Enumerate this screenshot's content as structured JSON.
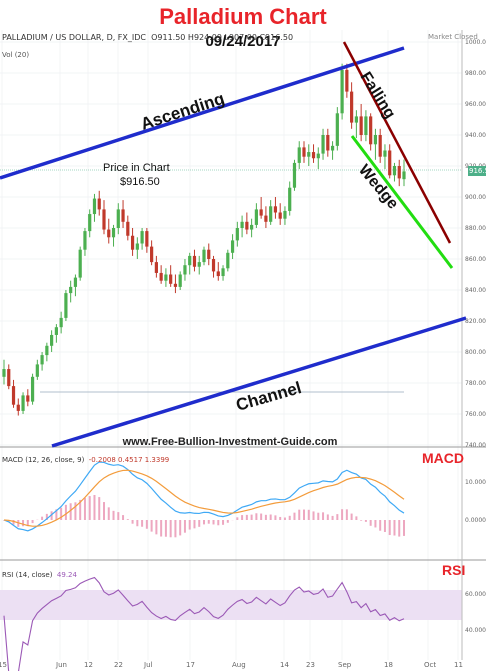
{
  "chart_data": {
    "type": "candlestick",
    "title": "Palladium Chart",
    "date": "09/24/2017",
    "symbol_header": "PALLADIUM / US DOLLAR, D, FX_IDC",
    "ohlc_readout": "O911.50  H924.09  L907.00  C916.50",
    "volume_label": "Vol (20)",
    "market_status": "Market Closed",
    "price_label_line1": "Price in Chart",
    "price_label_line2": "$916.50",
    "last_price_tag": "916.50",
    "website": "www.Free-Bullion-Investment-Guide.com",
    "annotations": [
      "Ascending",
      "Falling",
      "Wedge",
      "Channel"
    ],
    "price_axis": {
      "ticks": [
        "1000.00",
        "980.00",
        "960.00",
        "940.00",
        "920.00",
        "900.00",
        "880.00",
        "860.00",
        "840.00",
        "820.00",
        "800.00",
        "780.00",
        "760.00",
        "740.00"
      ],
      "range": [
        740,
        1000
      ]
    },
    "x_ticks": [
      "15",
      "Jun",
      "12",
      "22",
      "Jul",
      "17",
      "Aug",
      "14",
      "23",
      "Sep",
      "18",
      "Oct",
      "11"
    ],
    "candles": [
      [
        784,
        795,
        779,
        789
      ],
      [
        789,
        792,
        776,
        778
      ],
      [
        778,
        782,
        764,
        766
      ],
      [
        766,
        770,
        759,
        762
      ],
      [
        762,
        774,
        760,
        772
      ],
      [
        772,
        776,
        765,
        768
      ],
      [
        768,
        786,
        766,
        784
      ],
      [
        784,
        795,
        782,
        792
      ],
      [
        792,
        800,
        788,
        798
      ],
      [
        798,
        806,
        794,
        804
      ],
      [
        804,
        814,
        800,
        811
      ],
      [
        811,
        818,
        806,
        816
      ],
      [
        816,
        826,
        812,
        822
      ],
      [
        822,
        840,
        820,
        838
      ],
      [
        838,
        846,
        832,
        842
      ],
      [
        842,
        850,
        836,
        848
      ],
      [
        848,
        868,
        846,
        866
      ],
      [
        866,
        880,
        862,
        878
      ],
      [
        878,
        892,
        874,
        889
      ],
      [
        889,
        902,
        884,
        899
      ],
      [
        899,
        904,
        888,
        892
      ],
      [
        892,
        898,
        876,
        879
      ],
      [
        879,
        886,
        870,
        874
      ],
      [
        874,
        882,
        868,
        880
      ],
      [
        880,
        896,
        876,
        892
      ],
      [
        892,
        898,
        880,
        884
      ],
      [
        884,
        888,
        872,
        875
      ],
      [
        875,
        880,
        862,
        866
      ],
      [
        866,
        874,
        860,
        870
      ],
      [
        870,
        880,
        866,
        878
      ],
      [
        878,
        880,
        864,
        868
      ],
      [
        868,
        872,
        856,
        858
      ],
      [
        858,
        862,
        848,
        851
      ],
      [
        851,
        856,
        844,
        846
      ],
      [
        846,
        854,
        842,
        850
      ],
      [
        850,
        856,
        842,
        844
      ],
      [
        844,
        850,
        838,
        842
      ],
      [
        842,
        852,
        840,
        850
      ],
      [
        850,
        860,
        846,
        856
      ],
      [
        856,
        864,
        850,
        862
      ],
      [
        862,
        866,
        852,
        855
      ],
      [
        855,
        862,
        850,
        858
      ],
      [
        858,
        868,
        856,
        866
      ],
      [
        866,
        870,
        856,
        860
      ],
      [
        860,
        862,
        848,
        852
      ],
      [
        852,
        858,
        846,
        849
      ],
      [
        849,
        856,
        846,
        854
      ],
      [
        854,
        866,
        852,
        864
      ],
      [
        864,
        876,
        860,
        872
      ],
      [
        872,
        884,
        868,
        880
      ],
      [
        880,
        888,
        874,
        884
      ],
      [
        884,
        890,
        876,
        879
      ],
      [
        879,
        886,
        874,
        882
      ],
      [
        882,
        896,
        880,
        892
      ],
      [
        892,
        900,
        886,
        888
      ],
      [
        888,
        894,
        880,
        884
      ],
      [
        884,
        898,
        882,
        894
      ],
      [
        894,
        900,
        886,
        890
      ],
      [
        890,
        896,
        882,
        886
      ],
      [
        886,
        894,
        882,
        891
      ],
      [
        891,
        910,
        888,
        906
      ],
      [
        906,
        924,
        904,
        922
      ],
      [
        922,
        936,
        918,
        932
      ],
      [
        932,
        936,
        922,
        926
      ],
      [
        926,
        934,
        920,
        929
      ],
      [
        929,
        934,
        922,
        925
      ],
      [
        925,
        932,
        918,
        928
      ],
      [
        928,
        944,
        924,
        940
      ],
      [
        940,
        944,
        926,
        930
      ],
      [
        930,
        936,
        924,
        933
      ],
      [
        933,
        958,
        930,
        954
      ],
      [
        954,
        986,
        950,
        982
      ],
      [
        982,
        986,
        964,
        968
      ],
      [
        968,
        974,
        944,
        948
      ],
      [
        948,
        956,
        938,
        952
      ],
      [
        952,
        960,
        936,
        940
      ],
      [
        940,
        956,
        936,
        952
      ],
      [
        952,
        954,
        930,
        934
      ],
      [
        934,
        944,
        924,
        940
      ],
      [
        940,
        944,
        922,
        926
      ],
      [
        926,
        934,
        918,
        930
      ],
      [
        930,
        934,
        912,
        914
      ],
      [
        914,
        922,
        910,
        920
      ],
      [
        920,
        924,
        907,
        912
      ],
      [
        911.5,
        924.09,
        907,
        916.5
      ]
    ],
    "macd": {
      "label": "MACD (12, 26, close, 9)",
      "readout": "-0.2008  0.4517  1.3399",
      "series": [
        "MACD",
        "Signal",
        "Histogram"
      ]
    },
    "rsi": {
      "label": "RSI (14, close)",
      "readout": "49.24",
      "axis": [
        "60.0000",
        "40.0000"
      ]
    },
    "panel_labels": {
      "macd": "MACD",
      "rsi": "RSI"
    },
    "macd_axis": [
      "10.0000",
      "0.0000"
    ]
  },
  "colors": {
    "title": "#e8242a",
    "up": "#4caf50",
    "down": "#c0392b",
    "channel": "#1f2ccc",
    "falling": "#8b0000",
    "wedge": "#22dd11",
    "macd": "#3fa9f5",
    "signal": "#f39c3c",
    "rsi": "#9b59b6"
  }
}
